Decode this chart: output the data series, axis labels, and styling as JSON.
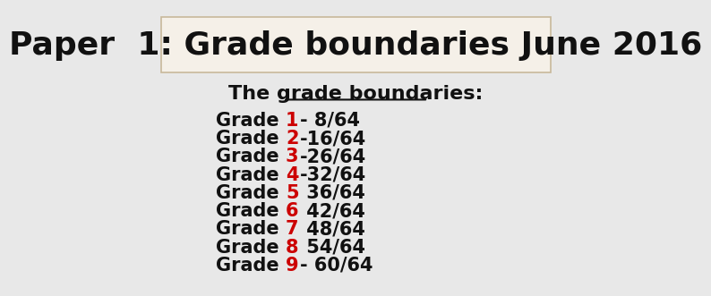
{
  "title": "Paper  1: Grade boundaries June 2016",
  "subtitle": "The grade boundaries:",
  "background_color": "#e8e8e8",
  "title_box_color": "#f5f0e8",
  "title_box_edge_color": "#c8b89a",
  "grades": [
    {
      "number": "1",
      "separator": "- ",
      "score": "8/64"
    },
    {
      "number": "2",
      "separator": "-",
      "score": "16/64"
    },
    {
      "number": "3",
      "separator": "-",
      "score": "26/64"
    },
    {
      "number": "4",
      "separator": "-",
      "score": "32/64"
    },
    {
      "number": "5",
      "separator": " ",
      "score": "36/64"
    },
    {
      "number": "6",
      "separator": " ",
      "score": "42/64"
    },
    {
      "number": "7",
      "separator": " ",
      "score": "48/64"
    },
    {
      "number": "8",
      "separator": " ",
      "score": "54/64"
    },
    {
      "number": "9",
      "separator": "- ",
      "score": "60/64"
    }
  ],
  "grade_color": "#cc0000",
  "text_color": "#111111",
  "title_fontsize": 26,
  "subtitle_fontsize": 16,
  "grade_fontsize": 15
}
